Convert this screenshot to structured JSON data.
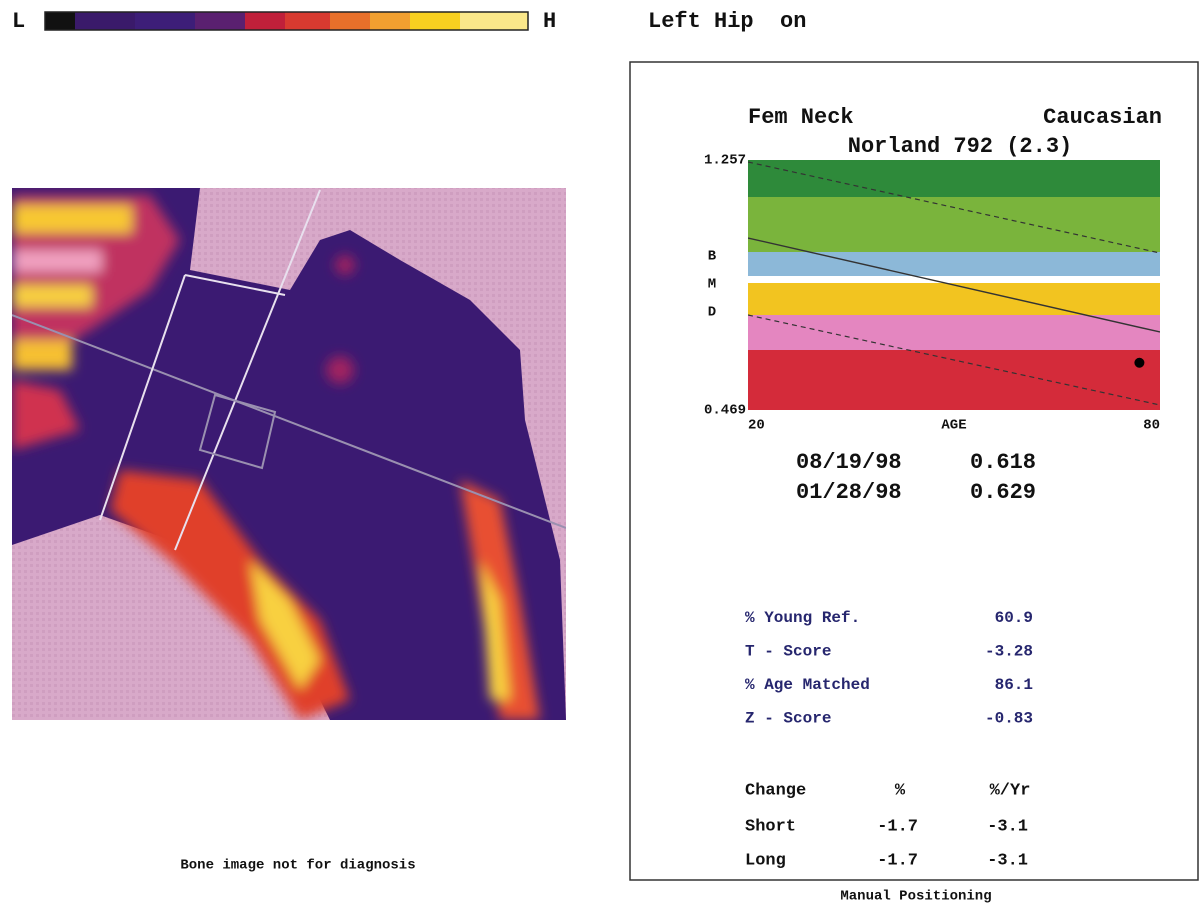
{
  "header": {
    "scale_low": "L",
    "scale_high": "H",
    "title": "Left Hip  on"
  },
  "image": {
    "caption": "Bone image not for diagnosis"
  },
  "chart_data": {
    "type": "scatter",
    "title": "Fem Neck",
    "subtitle": "Caucasian",
    "device": "Norland 792 (2.3)",
    "y_label": [
      "B",
      "M",
      "D"
    ],
    "x_label": "AGE",
    "xlim": [
      20,
      80
    ],
    "xticks": [
      20,
      80
    ],
    "ylim": [
      0.469,
      1.257
    ],
    "yticks": [
      0.469,
      1.257
    ],
    "x": [
      77
    ],
    "values": [
      0.618
    ],
    "color": "#000000"
  },
  "measurements": [
    {
      "date": "08/19/98",
      "bmd": 0.618
    },
    {
      "date": "01/28/98",
      "bmd": 0.629
    }
  ],
  "stats": [
    {
      "label": "% Young Ref.",
      "value": 60.9
    },
    {
      "label": "T - Score",
      "value": -3.28
    },
    {
      "label": "% Age Matched",
      "value": 86.1
    },
    {
      "label": "Z - Score",
      "value": -0.83
    }
  ],
  "change_table": {
    "headers": [
      "Change",
      "%",
      "%/Yr"
    ],
    "rows": [
      [
        "Short",
        -1.7,
        -3.1
      ],
      [
        "Long",
        -1.7,
        -3.1
      ]
    ]
  },
  "footer": "Manual Positioning"
}
